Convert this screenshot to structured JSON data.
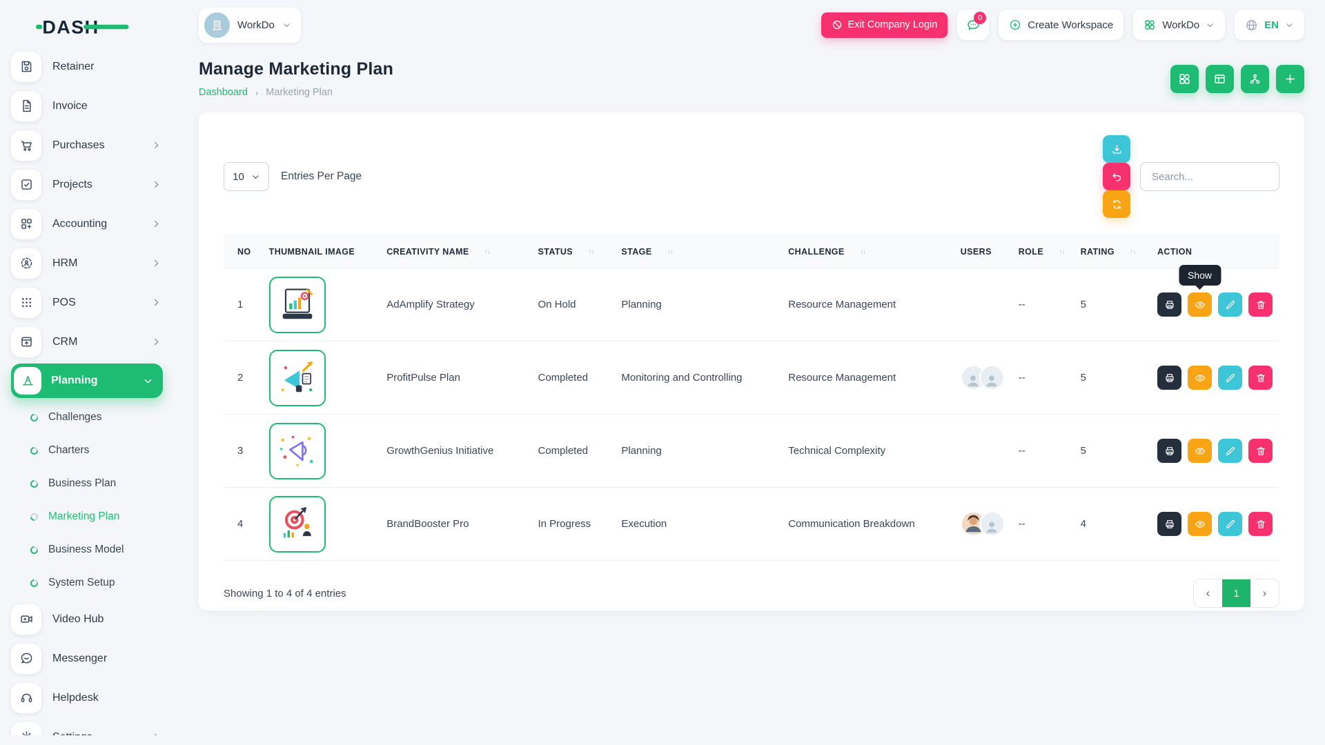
{
  "brand": {
    "logo_text": "DASH"
  },
  "colors": {
    "accent_green": "#1ebc72",
    "pink": "#f7316f",
    "cyan": "#3dc5d8",
    "orange": "#f8a415",
    "dark_navy": "#242e3d"
  },
  "topbar": {
    "company_selector": {
      "label": "WorkDo",
      "avatar_icon": "building-icon"
    },
    "exit_button_label": "Exit Company Login",
    "messages_badge": "0",
    "create_workspace_label": "Create Workspace",
    "workspace_selector_label": "WorkDo",
    "language_label": "EN"
  },
  "sidebar": {
    "items": [
      {
        "label": "Retainer",
        "icon": "floppy"
      },
      {
        "label": "Invoice",
        "icon": "file"
      },
      {
        "label": "Purchases",
        "icon": "cart",
        "chevron": "right"
      },
      {
        "label": "Projects",
        "icon": "check-square",
        "chevron": "right"
      },
      {
        "label": "Accounting",
        "icon": "grid-plus",
        "chevron": "right"
      },
      {
        "label": "HRM",
        "icon": "hrm",
        "chevron": "right"
      },
      {
        "label": "POS",
        "icon": "dots",
        "chevron": "right"
      },
      {
        "label": "CRM",
        "icon": "window",
        "chevron": "right"
      },
      {
        "label": "Planning",
        "icon": "cone",
        "chevron": "down",
        "active": true
      },
      {
        "label": "Challenges",
        "sub": true
      },
      {
        "label": "Charters",
        "sub": true
      },
      {
        "label": "Business Plan",
        "sub": true
      },
      {
        "label": "Marketing Plan",
        "sub": true,
        "active": true
      },
      {
        "label": "Business Model",
        "sub": true
      },
      {
        "label": "System Setup",
        "sub": true
      },
      {
        "label": "Video Hub",
        "icon": "video"
      },
      {
        "label": "Messenger",
        "icon": "chat"
      },
      {
        "label": "Helpdesk",
        "icon": "headset"
      },
      {
        "label": "Settings",
        "icon": "gear",
        "chevron": "right"
      }
    ]
  },
  "page": {
    "title": "Manage Marketing Plan",
    "breadcrumb_home": "Dashboard",
    "breadcrumb_current": "Marketing Plan",
    "action_icons": [
      "grid",
      "table-view",
      "hierarchy",
      "plus"
    ]
  },
  "controls": {
    "entries_value": "10",
    "entries_label": "Entries Per Page",
    "action_icons": [
      "download",
      "undo",
      "refresh"
    ],
    "search_placeholder": "Search..."
  },
  "table": {
    "headers": [
      {
        "label": "NO",
        "sortable": false
      },
      {
        "label": "THUMBNAIL IMAGE",
        "sortable": false
      },
      {
        "label": "CREATIVITY NAME",
        "sortable": true
      },
      {
        "label": "STATUS",
        "sortable": true
      },
      {
        "label": "STAGE",
        "sortable": true
      },
      {
        "label": "CHALLENGE",
        "sortable": true
      },
      {
        "label": "USERS",
        "sortable": false
      },
      {
        "label": "ROLE",
        "sortable": true
      },
      {
        "label": "RATING",
        "sortable": true
      },
      {
        "label": "ACTION",
        "sortable": false
      }
    ],
    "rows": [
      {
        "no": "1",
        "thumb": "thumb-1",
        "name": "AdAmplify Strategy",
        "status": "On Hold",
        "stage": "Planning",
        "challenge": "Resource Management",
        "users": [],
        "role": "--",
        "rating": "5",
        "tooltip": "Show"
      },
      {
        "no": "2",
        "thumb": "thumb-2",
        "name": "ProfitPulse Plan",
        "status": "Completed",
        "stage": "Monitoring and Controlling",
        "challenge": "Resource Management",
        "users": [
          "placeholder",
          "placeholder"
        ],
        "role": "--",
        "rating": "5"
      },
      {
        "no": "3",
        "thumb": "thumb-3",
        "name": "GrowthGenius Initiative",
        "status": "Completed",
        "stage": "Planning",
        "challenge": "Technical Complexity",
        "users": [],
        "role": "--",
        "rating": "5"
      },
      {
        "no": "4",
        "thumb": "thumb-4",
        "name": "BrandBooster Pro",
        "status": "In Progress",
        "stage": "Execution",
        "challenge": "Communication Breakdown",
        "users": [
          "photo",
          "placeholder"
        ],
        "role": "--",
        "rating": "4"
      }
    ]
  },
  "footer": {
    "showing_text": "Showing 1 to 4 of 4 entries",
    "pagination": {
      "prev": "‹",
      "page": "1",
      "next": "›"
    }
  }
}
